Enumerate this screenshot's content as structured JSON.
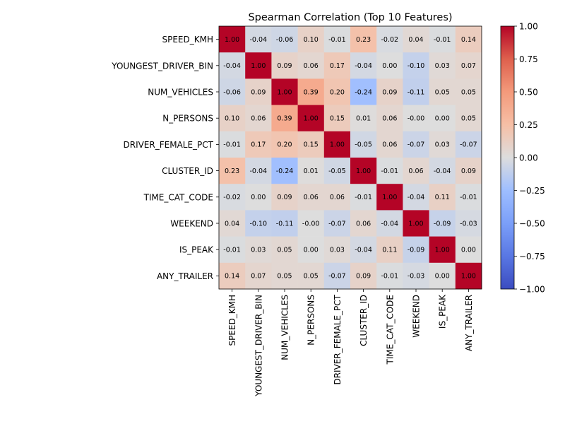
{
  "chart_data": {
    "type": "heatmap",
    "title": "Spearman Correlation (Top 10 Features)",
    "xlabel": "",
    "ylabel": "",
    "labels": [
      "SPEED_KMH",
      "YOUNGEST_DRIVER_BIN",
      "NUM_VEHICLES",
      "N_PERSONS",
      "DRIVER_FEMALE_PCT",
      "CLUSTER_ID",
      "TIME_CAT_CODE",
      "WEEKEND",
      "IS_PEAK",
      "ANY_TRAILER"
    ],
    "matrix": [
      [
        1.0,
        -0.04,
        -0.06,
        0.1,
        -0.01,
        0.23,
        -0.02,
        0.04,
        -0.01,
        0.14
      ],
      [
        -0.04,
        1.0,
        0.09,
        0.06,
        0.17,
        -0.04,
        0.0,
        -0.1,
        0.03,
        0.07
      ],
      [
        -0.06,
        0.09,
        1.0,
        0.39,
        0.2,
        -0.24,
        0.09,
        -0.11,
        0.05,
        0.05
      ],
      [
        0.1,
        0.06,
        0.39,
        1.0,
        0.15,
        0.01,
        0.06,
        -0.0,
        0.0,
        0.05
      ],
      [
        -0.01,
        0.17,
        0.2,
        0.15,
        1.0,
        -0.05,
        0.06,
        -0.07,
        0.03,
        -0.07
      ],
      [
        0.23,
        -0.04,
        -0.24,
        0.01,
        -0.05,
        1.0,
        -0.01,
        0.06,
        -0.04,
        0.09
      ],
      [
        -0.02,
        0.0,
        0.09,
        0.06,
        0.06,
        -0.01,
        1.0,
        -0.04,
        0.11,
        -0.01
      ],
      [
        0.04,
        -0.1,
        -0.11,
        -0.0,
        -0.07,
        0.06,
        -0.04,
        1.0,
        -0.09,
        -0.03
      ],
      [
        -0.01,
        0.03,
        0.05,
        0.0,
        0.03,
        -0.04,
        0.11,
        -0.09,
        1.0,
        0.0
      ],
      [
        0.14,
        0.07,
        0.05,
        0.05,
        -0.07,
        0.09,
        -0.01,
        -0.03,
        0.0,
        1.0
      ]
    ],
    "colormap": "coolwarm",
    "vmin": -1.0,
    "vmax": 1.0,
    "colorbar_ticks": [
      "1.00",
      "0.75",
      "0.50",
      "0.25",
      "0.00",
      "−0.25",
      "−0.50",
      "−0.75",
      "−1.00"
    ],
    "colorbar_values": [
      1.0,
      0.75,
      0.5,
      0.25,
      0.0,
      -0.25,
      -0.5,
      -0.75,
      -1.0
    ],
    "grid": false,
    "annotated": true,
    "colors": {
      "low": "#3b4cc0",
      "mid": "#dddddd",
      "high": "#b40426"
    }
  }
}
